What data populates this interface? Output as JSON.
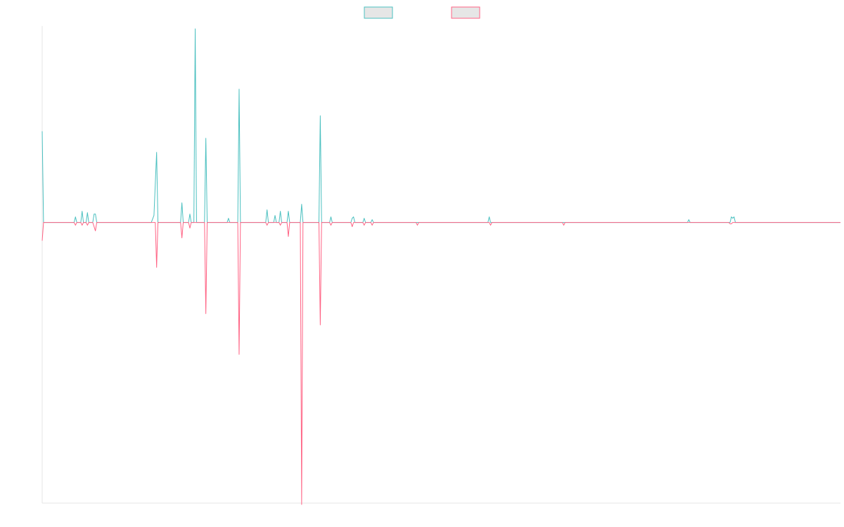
{
  "chart_data": {
    "type": "line",
    "title": "",
    "xlabel": "",
    "ylabel": "",
    "grid": false,
    "legend": "top-center",
    "x_range": [
      0,
      600
    ],
    "ylim": [
      -400,
      280
    ],
    "series": [
      {
        "color": "#4bc0c0",
        "legend_fill": "#e6e6e6",
        "points": [
          [
            0,
            130
          ],
          [
            1,
            0
          ],
          [
            24,
            0
          ],
          [
            25,
            8
          ],
          [
            26,
            0
          ],
          [
            29,
            0
          ],
          [
            30,
            16
          ],
          [
            31,
            0
          ],
          [
            33,
            0
          ],
          [
            34,
            14
          ],
          [
            35,
            0
          ],
          [
            38,
            0
          ],
          [
            39,
            12
          ],
          [
            40,
            12
          ],
          [
            41,
            0
          ],
          [
            82,
            0
          ],
          [
            84,
            10
          ],
          [
            86,
            100
          ],
          [
            87,
            0
          ],
          [
            95,
            0
          ],
          [
            96,
            0
          ],
          [
            98,
            0
          ],
          [
            104,
            0
          ],
          [
            105,
            28
          ],
          [
            106,
            0
          ],
          [
            110,
            0
          ],
          [
            111,
            12
          ],
          [
            112,
            0
          ],
          [
            114,
            0
          ],
          [
            115,
            276
          ],
          [
            116,
            0
          ],
          [
            122,
            0
          ],
          [
            123,
            120
          ],
          [
            124,
            0
          ],
          [
            139,
            0
          ],
          [
            140,
            6
          ],
          [
            141,
            0
          ],
          [
            147,
            0
          ],
          [
            148,
            190
          ],
          [
            149,
            0
          ],
          [
            168,
            0
          ],
          [
            169,
            18
          ],
          [
            170,
            0
          ],
          [
            174,
            0
          ],
          [
            175,
            10
          ],
          [
            176,
            0
          ],
          [
            178,
            0
          ],
          [
            179,
            16
          ],
          [
            180,
            0
          ],
          [
            184,
            0
          ],
          [
            185,
            16
          ],
          [
            186,
            0
          ],
          [
            194,
            0
          ],
          [
            195,
            26
          ],
          [
            196,
            0
          ],
          [
            208,
            0
          ],
          [
            209,
            152
          ],
          [
            210,
            0
          ],
          [
            216,
            0
          ],
          [
            217,
            8
          ],
          [
            218,
            0
          ],
          [
            232,
            0
          ],
          [
            233,
            6
          ],
          [
            234,
            8
          ],
          [
            235,
            0
          ],
          [
            241,
            0
          ],
          [
            242,
            6
          ],
          [
            243,
            0
          ],
          [
            247,
            0
          ],
          [
            248,
            4
          ],
          [
            249,
            0
          ],
          [
            335,
            0
          ],
          [
            336,
            8
          ],
          [
            337,
            0
          ],
          [
            485,
            0
          ],
          [
            486,
            4
          ],
          [
            487,
            0
          ],
          [
            517,
            0
          ],
          [
            518,
            8
          ],
          [
            519,
            6
          ],
          [
            520,
            8
          ],
          [
            521,
            0
          ],
          [
            600,
            0
          ]
        ]
      },
      {
        "color": "#ff6384",
        "legend_fill": "#e6e6e6",
        "points": [
          [
            0,
            -26
          ],
          [
            1,
            0
          ],
          [
            24,
            0
          ],
          [
            25,
            -4
          ],
          [
            26,
            0
          ],
          [
            29,
            0
          ],
          [
            30,
            -4
          ],
          [
            31,
            0
          ],
          [
            33,
            0
          ],
          [
            34,
            -4
          ],
          [
            35,
            0
          ],
          [
            38,
            0
          ],
          [
            39,
            -6
          ],
          [
            40,
            -12
          ],
          [
            41,
            0
          ],
          [
            85,
            0
          ],
          [
            86,
            -64
          ],
          [
            87,
            0
          ],
          [
            104,
            0
          ],
          [
            105,
            -22
          ],
          [
            106,
            0
          ],
          [
            110,
            0
          ],
          [
            111,
            -8
          ],
          [
            112,
            0
          ],
          [
            122,
            0
          ],
          [
            123,
            -130
          ],
          [
            124,
            0
          ],
          [
            147,
            0
          ],
          [
            148,
            -188
          ],
          [
            149,
            0
          ],
          [
            168,
            0
          ],
          [
            169,
            -4
          ],
          [
            170,
            0
          ],
          [
            178,
            0
          ],
          [
            179,
            -4
          ],
          [
            180,
            0
          ],
          [
            184,
            0
          ],
          [
            185,
            -20
          ],
          [
            186,
            0
          ],
          [
            194,
            0
          ],
          [
            195,
            -402
          ],
          [
            196,
            0
          ],
          [
            208,
            0
          ],
          [
            209,
            -146
          ],
          [
            210,
            0
          ],
          [
            216,
            0
          ],
          [
            217,
            -4
          ],
          [
            218,
            0
          ],
          [
            232,
            0
          ],
          [
            233,
            -6
          ],
          [
            234,
            0
          ],
          [
            241,
            0
          ],
          [
            242,
            -4
          ],
          [
            243,
            0
          ],
          [
            247,
            0
          ],
          [
            248,
            -4
          ],
          [
            249,
            0
          ],
          [
            281,
            0
          ],
          [
            282,
            -4
          ],
          [
            283,
            0
          ],
          [
            336,
            0
          ],
          [
            337,
            -4
          ],
          [
            338,
            0
          ],
          [
            391,
            0
          ],
          [
            392,
            -4
          ],
          [
            393,
            0
          ],
          [
            516,
            0
          ],
          [
            517,
            -2
          ],
          [
            518,
            -2
          ],
          [
            519,
            0
          ],
          [
            600,
            0
          ]
        ]
      }
    ]
  }
}
